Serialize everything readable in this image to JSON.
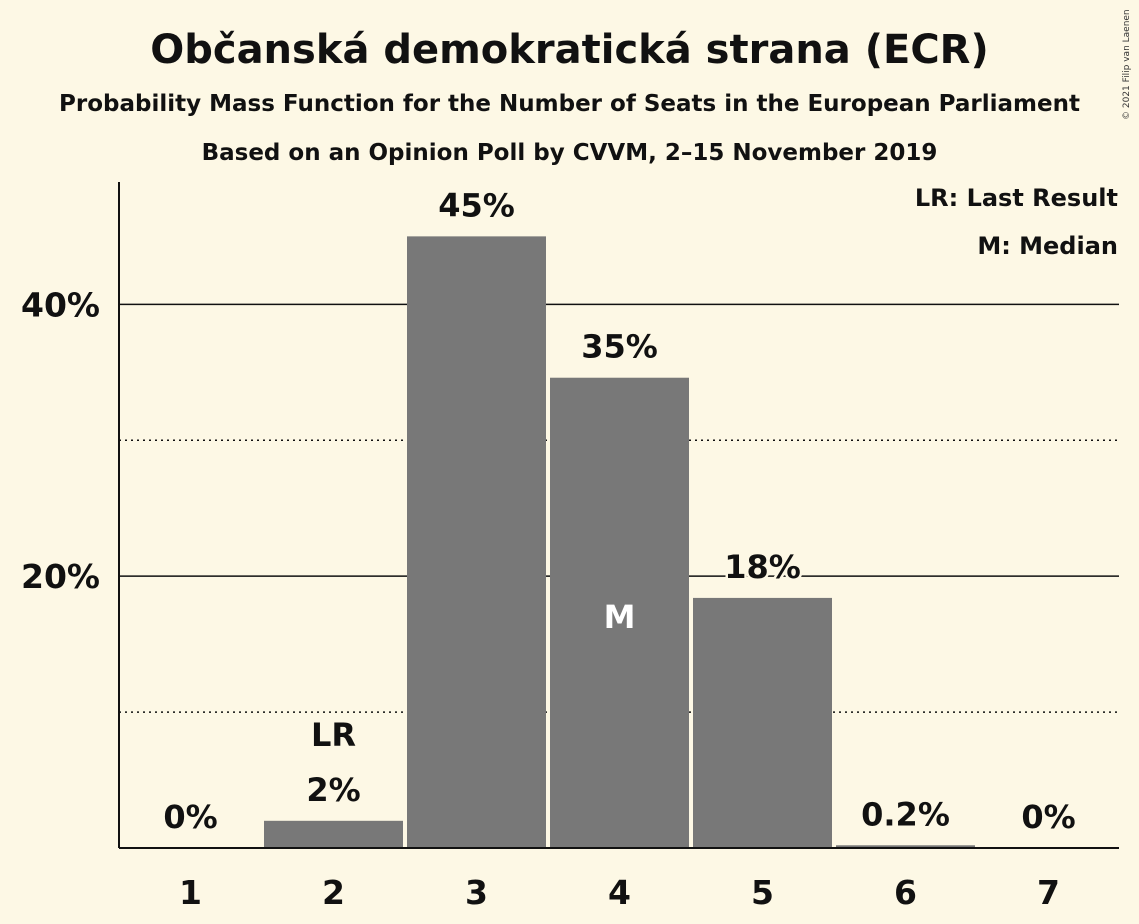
{
  "header": {
    "title": "Občanská demokratická strana (ECR)",
    "subtitle": "Probability Mass Function for the Number of Seats in the European Parliament",
    "subtitle2": "Based on an Opinion Poll by CVVM, 2–15 November 2019",
    "copyright": "© 2021 Filip van Laenen"
  },
  "legend": {
    "last_result": "LR: Last Result",
    "median": "M: Median"
  },
  "colors": {
    "background": "#fdf8e5",
    "bar": "#787878",
    "text": "#111111"
  },
  "chart_data": {
    "type": "bar",
    "categories": [
      "1",
      "2",
      "3",
      "4",
      "5",
      "6",
      "7"
    ],
    "values": [
      0,
      2,
      45,
      35,
      18,
      0.2,
      0
    ],
    "plot_values": [
      0,
      2.0,
      45.0,
      34.6,
      18.4,
      0.2,
      0
    ],
    "value_labels": [
      "0%",
      "2%",
      "45%",
      "35%",
      "18%",
      "0.2%",
      "0%"
    ],
    "ylim": [
      0,
      49
    ],
    "yticks": [
      20,
      40
    ],
    "ytick_labels": [
      "20%",
      "40%"
    ],
    "minor_yticks": [
      10,
      30
    ],
    "last_result_category": "2",
    "last_result_label": "LR",
    "median_category": "4",
    "median_label": "M",
    "xlabel": "",
    "ylabel": ""
  }
}
